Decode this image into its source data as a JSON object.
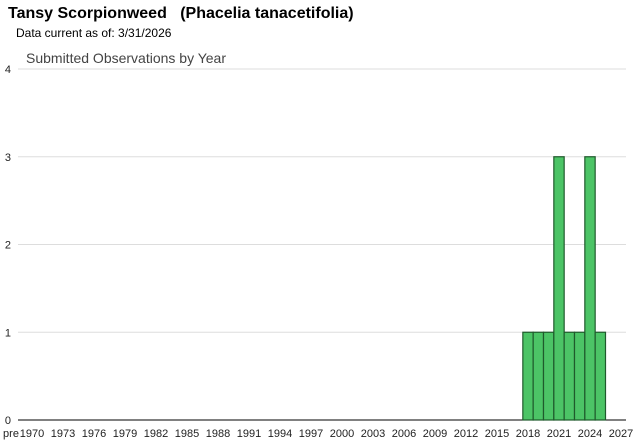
{
  "header": {
    "title": "Tansy Scorpionweed   (Phacelia tanacetifolia)",
    "subtitle": "Data current as of: 3/31/2026"
  },
  "chart_data": {
    "type": "bar",
    "title": "Submitted Observations by Year",
    "xlabel": "",
    "ylabel": "",
    "ylim": [
      0,
      4
    ],
    "yticks": [
      0,
      1,
      2,
      3,
      4
    ],
    "xticks": [
      "pre",
      "1970",
      "1973",
      "1976",
      "1979",
      "1982",
      "1985",
      "1988",
      "1991",
      "1994",
      "1997",
      "2000",
      "2003",
      "2006",
      "2009",
      "2012",
      "2015",
      "2018",
      "2021",
      "2024",
      "2027"
    ],
    "grid": true,
    "legend": "none",
    "bar_color": "#4cc466",
    "bar_edge_color": "#1f5a2c",
    "x": [
      2018,
      2019,
      2020,
      2021,
      2022,
      2023,
      2024,
      2025
    ],
    "values": [
      1,
      1,
      1,
      3,
      1,
      1,
      3,
      1
    ]
  }
}
